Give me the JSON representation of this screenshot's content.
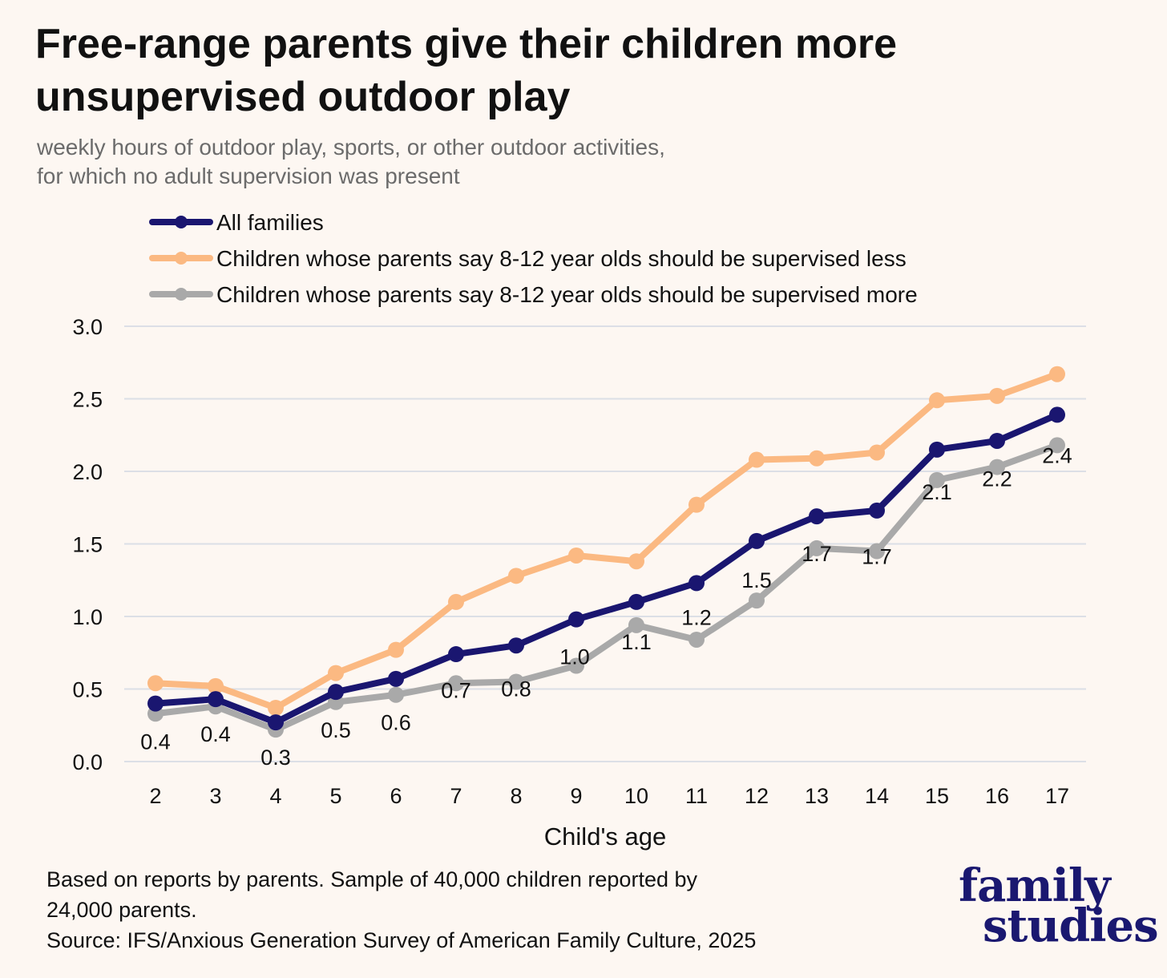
{
  "header": {
    "title": "Free-range parents give their children more unsupervised outdoor play",
    "subtitle": "weekly hours of outdoor play, sports, or other outdoor activities, for which no adult supervision was present"
  },
  "footer": {
    "note_line1": "Based on reports by parents. Sample of 40,000 children reported by",
    "note_line2": "24,000 parents.",
    "source": "Source: IFS/Anxious Generation Survey of American Family Culture, 2025"
  },
  "logo": {
    "line1": "family",
    "line2": "studies"
  },
  "chart_data": {
    "type": "line",
    "title": "Free-range parents give their children more unsupervised outdoor play",
    "subtitle": "weekly hours of outdoor play, sports, or other outdoor activities, for which no adult supervision was present",
    "xlabel": "Child's age",
    "ylabel": "",
    "x": [
      "2",
      "3",
      "4",
      "5",
      "6",
      "7",
      "8",
      "9",
      "10",
      "11",
      "12",
      "13",
      "14",
      "15",
      "16",
      "17"
    ],
    "ylim": [
      0,
      3
    ],
    "yticks": [
      "0.0",
      "0.5",
      "1.0",
      "1.5",
      "2.0",
      "2.5",
      "3.0"
    ],
    "grid": true,
    "legend": "top-left",
    "series": [
      {
        "name": "All families",
        "color": "#1a1670",
        "values": [
          0.4,
          0.43,
          0.27,
          0.48,
          0.57,
          0.74,
          0.8,
          0.98,
          1.1,
          1.23,
          1.52,
          1.69,
          1.73,
          2.15,
          2.21,
          2.39
        ],
        "labels": [
          "0.4",
          "0.4",
          "0.3",
          "0.5",
          "0.6",
          "0.7",
          "0.8",
          "1.0",
          "1.1",
          "1.2",
          "1.5",
          "1.7",
          "1.7",
          "2.1",
          "2.2",
          "2.4"
        ]
      },
      {
        "name": "Children whose parents say 8-12 year olds should be supervised less",
        "color": "#fbb982",
        "values": [
          0.54,
          0.52,
          0.37,
          0.61,
          0.77,
          1.1,
          1.28,
          1.42,
          1.38,
          1.77,
          2.08,
          2.09,
          2.13,
          2.49,
          2.52,
          2.67
        ]
      },
      {
        "name": "Children whose parents say 8-12 year olds should be supervised more",
        "color": "#a9a9a9",
        "values": [
          0.33,
          0.38,
          0.22,
          0.41,
          0.46,
          0.54,
          0.55,
          0.66,
          0.94,
          0.84,
          1.11,
          1.47,
          1.45,
          1.94,
          2.03,
          2.18
        ]
      }
    ]
  }
}
